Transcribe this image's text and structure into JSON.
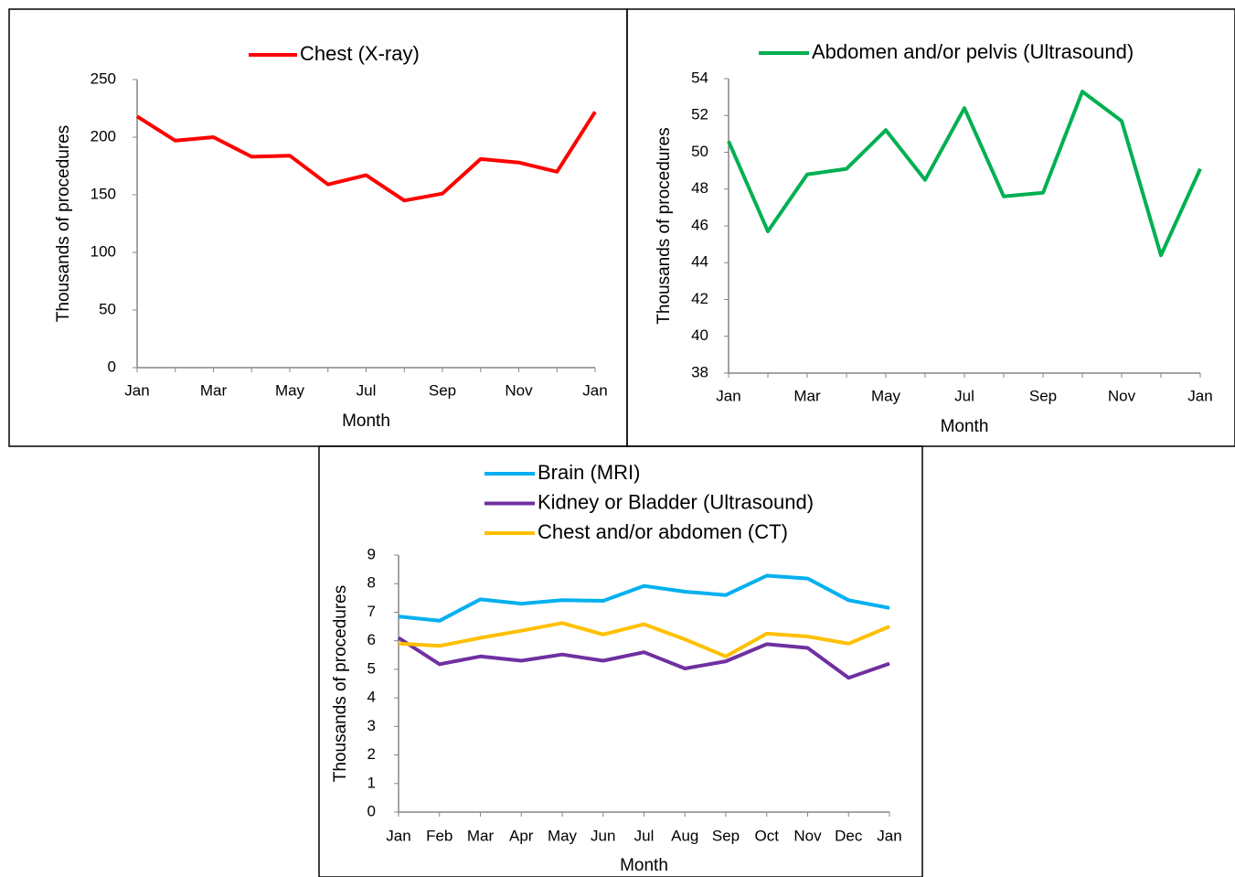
{
  "chart_data": [
    {
      "type": "line",
      "x_label": "Month",
      "y_label": "Thousands of procedures",
      "categories": [
        "Jan",
        null,
        "Mar",
        null,
        "May",
        null,
        "Jul",
        null,
        "Sep",
        null,
        "Nov",
        null,
        "Jan"
      ],
      "series": [
        {
          "name": "Chest (X-ray)",
          "color": "#ff0000",
          "values": [
            218,
            197,
            200,
            183,
            184,
            159,
            167,
            145,
            151,
            181,
            178,
            170,
            222
          ]
        }
      ],
      "ylim": [
        0,
        250
      ],
      "yticks": [
        0,
        50,
        100,
        150,
        200,
        250
      ],
      "grid": false
    },
    {
      "type": "line",
      "x_label": "Month",
      "y_label": "Thousands of procedures",
      "categories": [
        "Jan",
        null,
        "Mar",
        null,
        "May",
        null,
        "Jul",
        null,
        "Sep",
        null,
        "Nov",
        null,
        "Jan"
      ],
      "series": [
        {
          "name": "Abdomen and/or pelvis (Ultrasound)",
          "color": "#00b050",
          "values": [
            50.6,
            45.7,
            48.8,
            49.1,
            51.2,
            48.5,
            52.4,
            47.6,
            47.8,
            53.3,
            51.7,
            44.4,
            49.1
          ]
        }
      ],
      "ylim": [
        38,
        54
      ],
      "yticks": [
        38,
        40,
        42,
        44,
        46,
        48,
        50,
        52,
        54
      ],
      "grid": false
    },
    {
      "type": "line",
      "x_label": "Month",
      "y_label": "Thousands of procedures",
      "categories": [
        "Jan",
        "Feb",
        "Mar",
        "Apr",
        "May",
        "Jun",
        "Jul",
        "Aug",
        "Sep",
        "Oct",
        "Nov",
        "Dec",
        "Jan"
      ],
      "series": [
        {
          "name": "Brain (MRI)",
          "color": "#00b0f0",
          "values": [
            6.85,
            6.7,
            7.45,
            7.3,
            7.42,
            7.4,
            7.92,
            7.72,
            7.6,
            8.28,
            8.18,
            7.42,
            7.15
          ]
        },
        {
          "name": "Kidney or Bladder (Ultrasound)",
          "color": "#7030a0",
          "values": [
            6.1,
            5.18,
            5.45,
            5.3,
            5.52,
            5.3,
            5.6,
            5.03,
            5.28,
            5.88,
            5.75,
            4.7,
            5.2
          ]
        },
        {
          "name": "Chest and/or abdomen (CT)",
          "color": "#ffc000",
          "values": [
            5.9,
            5.82,
            6.1,
            6.35,
            6.62,
            6.22,
            6.58,
            6.05,
            5.45,
            6.25,
            6.15,
            5.9,
            6.5
          ]
        }
      ],
      "ylim": [
        0,
        9
      ],
      "yticks": [
        0,
        1,
        2,
        3,
        4,
        5,
        6,
        7,
        8,
        9
      ],
      "grid": false
    }
  ]
}
